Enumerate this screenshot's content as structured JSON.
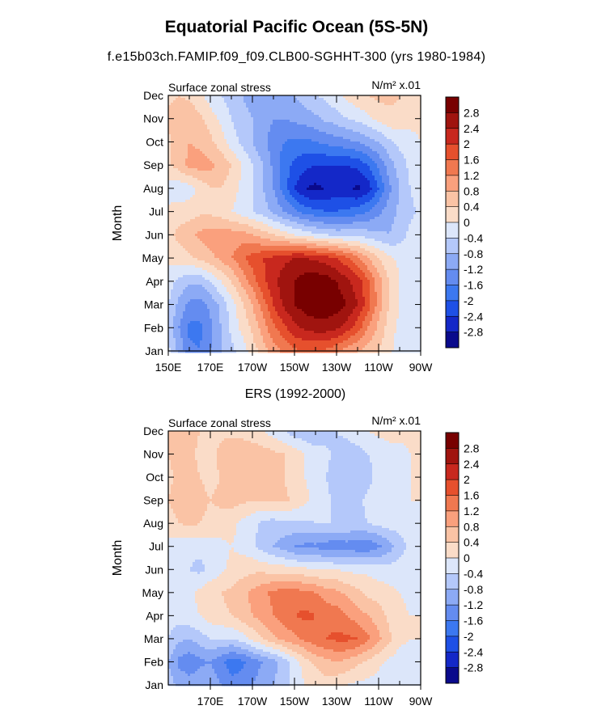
{
  "page": {
    "title": "Equatorial Pacific Ocean (5S-5N)",
    "subtitle": "f.e15b03ch.FAMIP.f09_f09.CLB00-SGHHT-300 (yrs 1980-1984)"
  },
  "palette": [
    "#0a0a8c",
    "#1428c8",
    "#1e50e6",
    "#3c78f0",
    "#648cf0",
    "#8caaf5",
    "#b4c8fa",
    "#dce6fa",
    "#fadcc8",
    "#fac3a5",
    "#faa07d",
    "#f07850",
    "#e6502d",
    "#c8281e",
    "#a0140f",
    "#780000"
  ],
  "chart_data": [
    {
      "type": "heatmap",
      "title": "",
      "left_label": "Surface zonal stress",
      "right_label": "N/m² x.01",
      "xlabel": "",
      "ylabel": "Month",
      "x_tick_labels": [
        "150E",
        "170E",
        "170W",
        "150W",
        "130W",
        "110W",
        "90W"
      ],
      "y_tick_labels": [
        "Jan",
        "Feb",
        "Mar",
        "Apr",
        "May",
        "Jun",
        "Jul",
        "Aug",
        "Sep",
        "Oct",
        "Nov",
        "Dec"
      ],
      "x": [
        150,
        155,
        160,
        165,
        170,
        175,
        180,
        185,
        190,
        195,
        200,
        205,
        210,
        215,
        220,
        225,
        230,
        235,
        240,
        245,
        250,
        255,
        260,
        265,
        270
      ],
      "y": [
        "Jan",
        "Feb",
        "Mar",
        "Apr",
        "May",
        "Jun",
        "Jul",
        "Aug",
        "Sep",
        "Oct",
        "Nov",
        "Dec"
      ],
      "colorbar_labels": [
        "2.8",
        "2.4",
        "2",
        "1.6",
        "1.2",
        "0.8",
        "0.4",
        "0",
        "-0.4",
        "-0.8",
        "-1.2",
        "-1.6",
        "-2",
        "-2.4",
        "-2.8"
      ],
      "levels": [
        -2.8,
        -2.4,
        -2.0,
        -1.6,
        -1.2,
        -0.8,
        -0.4,
        0,
        0.4,
        0.8,
        1.2,
        1.6,
        2.0,
        2.4,
        2.8
      ],
      "z": [
        [
          -0.3,
          -0.9,
          -1.5,
          -1.6,
          -1.2,
          -0.8,
          -0.5,
          -0.2,
          0.2,
          0.6,
          1.0,
          1.3,
          1.5,
          1.6,
          1.6,
          1.5,
          1.3,
          1.0,
          0.8,
          0.6,
          0.4,
          0.1,
          -0.2,
          -0.3,
          -0.3
        ],
        [
          -0.5,
          -1.2,
          -1.7,
          -1.7,
          -1.3,
          -0.8,
          -0.3,
          0.1,
          0.5,
          1.0,
          1.5,
          1.9,
          2.3,
          2.5,
          2.6,
          2.6,
          2.5,
          2.2,
          1.8,
          1.2,
          0.7,
          0.2,
          -0.1,
          -0.2,
          -0.2
        ],
        [
          -0.4,
          -0.9,
          -1.3,
          -1.4,
          -1.1,
          -0.7,
          -0.2,
          0.3,
          0.8,
          1.4,
          2.0,
          2.5,
          2.8,
          3.0,
          3.1,
          3.1,
          3.0,
          2.8,
          2.4,
          1.8,
          1.0,
          0.4,
          0.0,
          -0.2,
          -0.2
        ],
        [
          -0.2,
          -0.5,
          -0.7,
          -0.7,
          -0.4,
          0.0,
          0.4,
          0.9,
          1.4,
          1.9,
          2.3,
          2.6,
          2.8,
          3.0,
          3.1,
          3.0,
          2.8,
          2.5,
          2.2,
          1.7,
          1.0,
          0.4,
          0.0,
          -0.1,
          -0.1
        ],
        [
          0.1,
          0.2,
          0.3,
          0.5,
          0.7,
          0.9,
          1.2,
          1.5,
          1.8,
          2.0,
          2.1,
          2.3,
          2.4,
          2.4,
          2.3,
          2.2,
          2.0,
          1.7,
          1.3,
          0.8,
          0.4,
          0.1,
          -0.1,
          -0.1,
          -0.1
        ],
        [
          0.3,
          0.5,
          0.7,
          0.9,
          1.0,
          1.0,
          1.0,
          1.0,
          0.8,
          0.6,
          0.4,
          0.2,
          0.0,
          -0.1,
          -0.3,
          -0.4,
          -0.5,
          -0.5,
          -0.5,
          -0.6,
          -0.7,
          -0.8,
          -0.6,
          -0.3,
          -0.2
        ],
        [
          0.1,
          0.2,
          0.2,
          0.3,
          0.3,
          0.2,
          0.0,
          -0.2,
          -0.4,
          -0.6,
          -0.9,
          -1.2,
          -1.5,
          -1.8,
          -1.9,
          -2.0,
          -2.0,
          -1.9,
          -1.8,
          -1.6,
          -1.3,
          -1.0,
          -0.7,
          -0.5,
          -0.3
        ],
        [
          -0.2,
          -0.3,
          -0.2,
          0.1,
          0.4,
          0.4,
          0.2,
          -0.1,
          -0.4,
          -0.8,
          -1.2,
          -1.8,
          -2.4,
          -2.8,
          -2.9,
          -2.8,
          -2.6,
          -2.7,
          -2.9,
          -2.6,
          -2.0,
          -1.3,
          -0.8,
          -0.4,
          -0.2
        ],
        [
          0.3,
          0.6,
          0.9,
          1.0,
          0.9,
          0.7,
          0.4,
          0.0,
          -0.4,
          -0.8,
          -1.3,
          -1.8,
          -2.1,
          -2.3,
          -2.4,
          -2.4,
          -2.4,
          -2.4,
          -2.3,
          -2.0,
          -1.5,
          -1.0,
          -0.6,
          -0.3,
          -0.1
        ],
        [
          0.3,
          0.6,
          0.8,
          0.7,
          0.5,
          0.2,
          -0.2,
          -0.5,
          -0.8,
          -1.1,
          -1.4,
          -1.6,
          -1.7,
          -1.7,
          -1.6,
          -1.5,
          -1.4,
          -1.3,
          -1.2,
          -1.0,
          -0.8,
          -0.5,
          -0.3,
          -0.2,
          0.0
        ],
        [
          0.5,
          0.7,
          0.7,
          0.5,
          0.2,
          -0.1,
          -0.4,
          -0.6,
          -0.8,
          -1.0,
          -1.2,
          -1.2,
          -1.1,
          -1.0,
          -0.9,
          -0.7,
          -0.6,
          -0.4,
          -0.3,
          -0.1,
          0.1,
          0.3,
          0.3,
          0.2,
          0.1
        ],
        [
          0.3,
          0.4,
          0.3,
          0.1,
          -0.2,
          -0.4,
          -0.6,
          -0.8,
          -1.0,
          -1.1,
          -1.1,
          -1.0,
          -0.8,
          -0.6,
          -0.4,
          -0.3,
          -0.1,
          0.1,
          0.3,
          0.4,
          0.5,
          0.5,
          0.4,
          0.3,
          0.2
        ]
      ]
    },
    {
      "type": "heatmap",
      "title": "ERS (1992-2000)",
      "left_label": "Surface zonal stress",
      "right_label": "N/m² x.01",
      "xlabel": "",
      "ylabel": "Month",
      "x_tick_labels": [
        "170E",
        "170W",
        "150W",
        "130W",
        "110W",
        "90W"
      ],
      "y_tick_labels": [
        "Jan",
        "Feb",
        "Mar",
        "Apr",
        "May",
        "Jun",
        "Jul",
        "Aug",
        "Sep",
        "Oct",
        "Nov",
        "Dec"
      ],
      "x": [
        150,
        155,
        160,
        165,
        170,
        175,
        180,
        185,
        190,
        195,
        200,
        205,
        210,
        215,
        220,
        225,
        230,
        235,
        240,
        245,
        250,
        255,
        260,
        265,
        270
      ],
      "y": [
        "Jan",
        "Feb",
        "Mar",
        "Apr",
        "May",
        "Jun",
        "Jul",
        "Aug",
        "Sep",
        "Oct",
        "Nov",
        "Dec"
      ],
      "colorbar_labels": [
        "2.8",
        "2.4",
        "2",
        "1.6",
        "1.2",
        "0.8",
        "0.4",
        "0",
        "-0.4",
        "-0.8",
        "-1.2",
        "-1.6",
        "-2",
        "-2.4",
        "-2.8"
      ],
      "levels": [
        -2.8,
        -2.4,
        -2.0,
        -1.6,
        -1.2,
        -0.8,
        -0.4,
        0,
        0.4,
        0.8,
        1.2,
        1.6,
        2.0,
        2.4,
        2.8
      ],
      "z": [
        [
          -0.6,
          -0.9,
          -1.0,
          -0.9,
          -0.9,
          -1.2,
          -1.5,
          -1.4,
          -1.2,
          -1.0,
          -0.8,
          -0.5,
          -0.3,
          0.0,
          0.1,
          0.2,
          0.1,
          0.0,
          -0.1,
          -0.1,
          -0.2,
          -0.2,
          -0.1,
          -0.1,
          0.0
        ],
        [
          -0.8,
          -1.3,
          -1.5,
          -1.3,
          -1.2,
          -1.5,
          -1.8,
          -1.7,
          -1.4,
          -1.2,
          -1.0,
          -0.6,
          -0.2,
          0.2,
          0.5,
          0.7,
          0.8,
          0.7,
          0.5,
          0.3,
          0.1,
          -0.1,
          -0.2,
          -0.2,
          -0.1
        ],
        [
          -0.4,
          -0.7,
          -0.8,
          -0.6,
          -0.4,
          -0.4,
          -0.4,
          -0.2,
          0.1,
          0.4,
          0.7,
          0.9,
          1.1,
          1.3,
          1.5,
          1.6,
          1.7,
          1.7,
          1.6,
          1.3,
          0.9,
          0.5,
          0.1,
          0.0,
          0.0
        ],
        [
          -0.2,
          -0.2,
          -0.1,
          0.0,
          0.2,
          0.3,
          0.4,
          0.6,
          0.8,
          1.0,
          1.2,
          1.4,
          1.6,
          1.7,
          1.6,
          1.5,
          1.4,
          1.2,
          1.0,
          0.8,
          0.6,
          0.3,
          0.1,
          0.0,
          0.0
        ],
        [
          -0.3,
          -0.2,
          -0.1,
          0.1,
          0.3,
          0.4,
          0.5,
          0.7,
          0.9,
          1.1,
          1.3,
          1.4,
          1.4,
          1.3,
          1.2,
          1.0,
          0.9,
          0.7,
          0.5,
          0.3,
          0.2,
          0.1,
          0.0,
          -0.1,
          -0.1
        ],
        [
          -0.2,
          -0.3,
          -0.4,
          -0.5,
          -0.3,
          -0.1,
          0.1,
          0.2,
          0.3,
          0.3,
          0.2,
          0.2,
          0.1,
          0.1,
          0.0,
          0.0,
          0.0,
          -0.1,
          -0.1,
          -0.1,
          -0.2,
          -0.2,
          -0.2,
          -0.1,
          -0.1
        ],
        [
          -0.1,
          -0.2,
          -0.3,
          -0.3,
          -0.2,
          -0.1,
          0.0,
          -0.1,
          -0.3,
          -0.6,
          -0.8,
          -1.0,
          -1.2,
          -1.3,
          -1.3,
          -1.4,
          -1.5,
          -1.4,
          -1.5,
          -1.5,
          -1.3,
          -1.0,
          -0.6,
          -0.3,
          -0.1
        ],
        [
          0.2,
          0.4,
          0.5,
          0.4,
          0.3,
          0.2,
          0.1,
          -0.1,
          -0.3,
          -0.5,
          -0.6,
          -0.5,
          -0.5,
          -0.5,
          -0.4,
          -0.4,
          -0.4,
          -0.4,
          -0.5,
          -0.4,
          -0.3,
          -0.2,
          -0.2,
          -0.1,
          -0.1
        ],
        [
          0.4,
          0.6,
          0.7,
          0.5,
          0.4,
          0.5,
          0.6,
          0.5,
          0.4,
          0.4,
          0.5,
          0.5,
          0.3,
          0.1,
          -0.1,
          -0.3,
          -0.5,
          -0.6,
          -0.5,
          -0.3,
          -0.2,
          -0.1,
          -0.1,
          0.0,
          0.0
        ],
        [
          0.3,
          0.5,
          0.6,
          0.4,
          0.3,
          0.4,
          0.5,
          0.5,
          0.4,
          0.4,
          0.4,
          0.4,
          0.2,
          0.0,
          -0.2,
          -0.4,
          -0.6,
          -0.8,
          -0.7,
          -0.5,
          -0.3,
          -0.2,
          -0.1,
          0.0,
          0.0
        ],
        [
          0.4,
          0.6,
          0.5,
          0.3,
          0.3,
          0.5,
          0.7,
          0.8,
          0.7,
          0.6,
          0.5,
          0.4,
          0.2,
          0.0,
          -0.2,
          -0.3,
          -0.5,
          -0.6,
          -0.6,
          -0.4,
          -0.3,
          -0.2,
          -0.1,
          0.0,
          0.0
        ],
        [
          0.5,
          0.7,
          0.6,
          0.4,
          0.3,
          0.3,
          0.3,
          0.2,
          0.1,
          0.0,
          -0.2,
          -0.4,
          -0.6,
          -0.7,
          -0.8,
          -0.6,
          -0.4,
          -0.3,
          -0.1,
          0.0,
          0.1,
          0.2,
          0.1,
          0.1,
          0.0
        ]
      ]
    }
  ]
}
